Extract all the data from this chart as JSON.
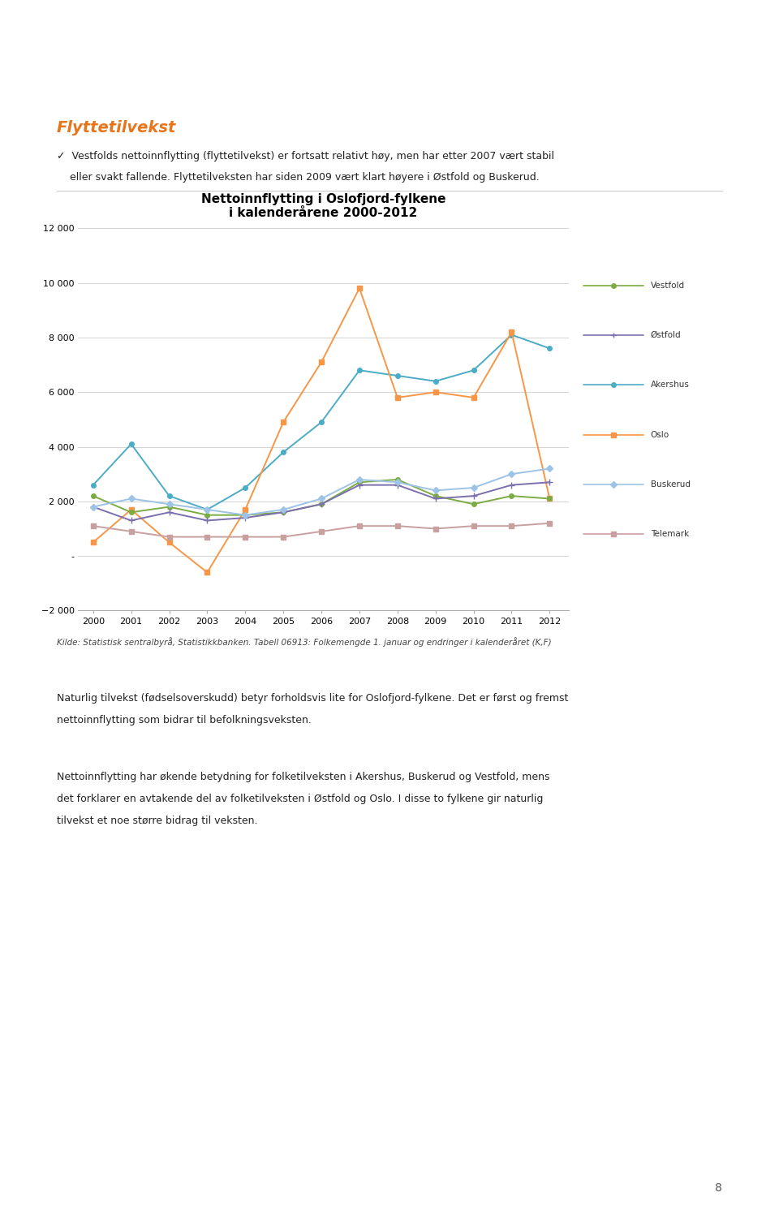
{
  "title_line1": "Nettoinnflytting i Oslofjord-fylkene",
  "title_line2": "i kalenderårene 2000-2012",
  "years": [
    2000,
    2001,
    2002,
    2003,
    2004,
    2005,
    2006,
    2007,
    2008,
    2009,
    2010,
    2011,
    2012
  ],
  "vestfold": [
    2200,
    1600,
    1800,
    1500,
    1500,
    1600,
    1900,
    2700,
    2800,
    2200,
    1900,
    2200,
    2100
  ],
  "ostfold": [
    1800,
    1300,
    1600,
    1300,
    1400,
    1600,
    1900,
    2600,
    2600,
    2100,
    2200,
    2600,
    2700
  ],
  "akershus": [
    2600,
    4100,
    2200,
    1700,
    2500,
    3800,
    4900,
    6800,
    6600,
    6400,
    6800,
    8100,
    7600
  ],
  "oslo": [
    500,
    1700,
    500,
    -600,
    1700,
    4900,
    7100,
    9800,
    5800,
    6000,
    5800,
    8200,
    2100
  ],
  "buskerud": [
    1800,
    2100,
    1900,
    1700,
    1500,
    1700,
    2100,
    2800,
    2700,
    2400,
    2500,
    3000,
    3200
  ],
  "telemark": [
    1100,
    900,
    700,
    700,
    700,
    700,
    900,
    1100,
    1100,
    1000,
    1100,
    1100,
    1200
  ],
  "vestfold_color": "#7cac44",
  "ostfold_color": "#7b6fad",
  "akershus_color": "#4bacc6",
  "oslo_color": "#f79646",
  "buskerud_color": "#9dc3e6",
  "telemark_color": "#c9a0a0",
  "ylim": [
    -2000,
    12000
  ],
  "yticks": [
    -2000,
    0,
    2000,
    4000,
    6000,
    8000,
    10000,
    12000
  ],
  "background_color": "#ffffff",
  "grid_color": "#d3d3d3",
  "header_title": "Flyttetilvekst",
  "header_title_color": "#e8751a",
  "bullet_char": "✓",
  "header_line1": "Vestfolds nettoinnflytting (flyttetilvekst) er fortsatt relativt høy, men har etter 2007 vært stabil",
  "header_line2": "eller svakt fallende. Flyttetilveksten har siden 2009 vært klart høyere i Østfold og Buskerud.",
  "source_text": "Kilde: Statistisk sentralbyrå, Statistikkbanken. Tabell 06913: Folkemengde 1. januar og endringer i kalenderåret (K,F)",
  "para1_line1": "Naturlig tilvekst (fødselsoverskudd) betyr forholdsvis lite for Oslofjord-fylkene. Det er først og fremst",
  "para1_line2": "nettoinnflytting som bidrar til befolkningsveksten.",
  "para2_line1": "Nettoinnflytting har økende betydning for folketilveksten i Akershus, Buskerud og Vestfold, mens",
  "para2_line2": "det forklarer en avtakende del av folketilveksten i Østfold og Oslo. I disse to fylkene gir naturlig",
  "para2_line3": "tilvekst et noe større bidrag til veksten.",
  "page_number": "8"
}
